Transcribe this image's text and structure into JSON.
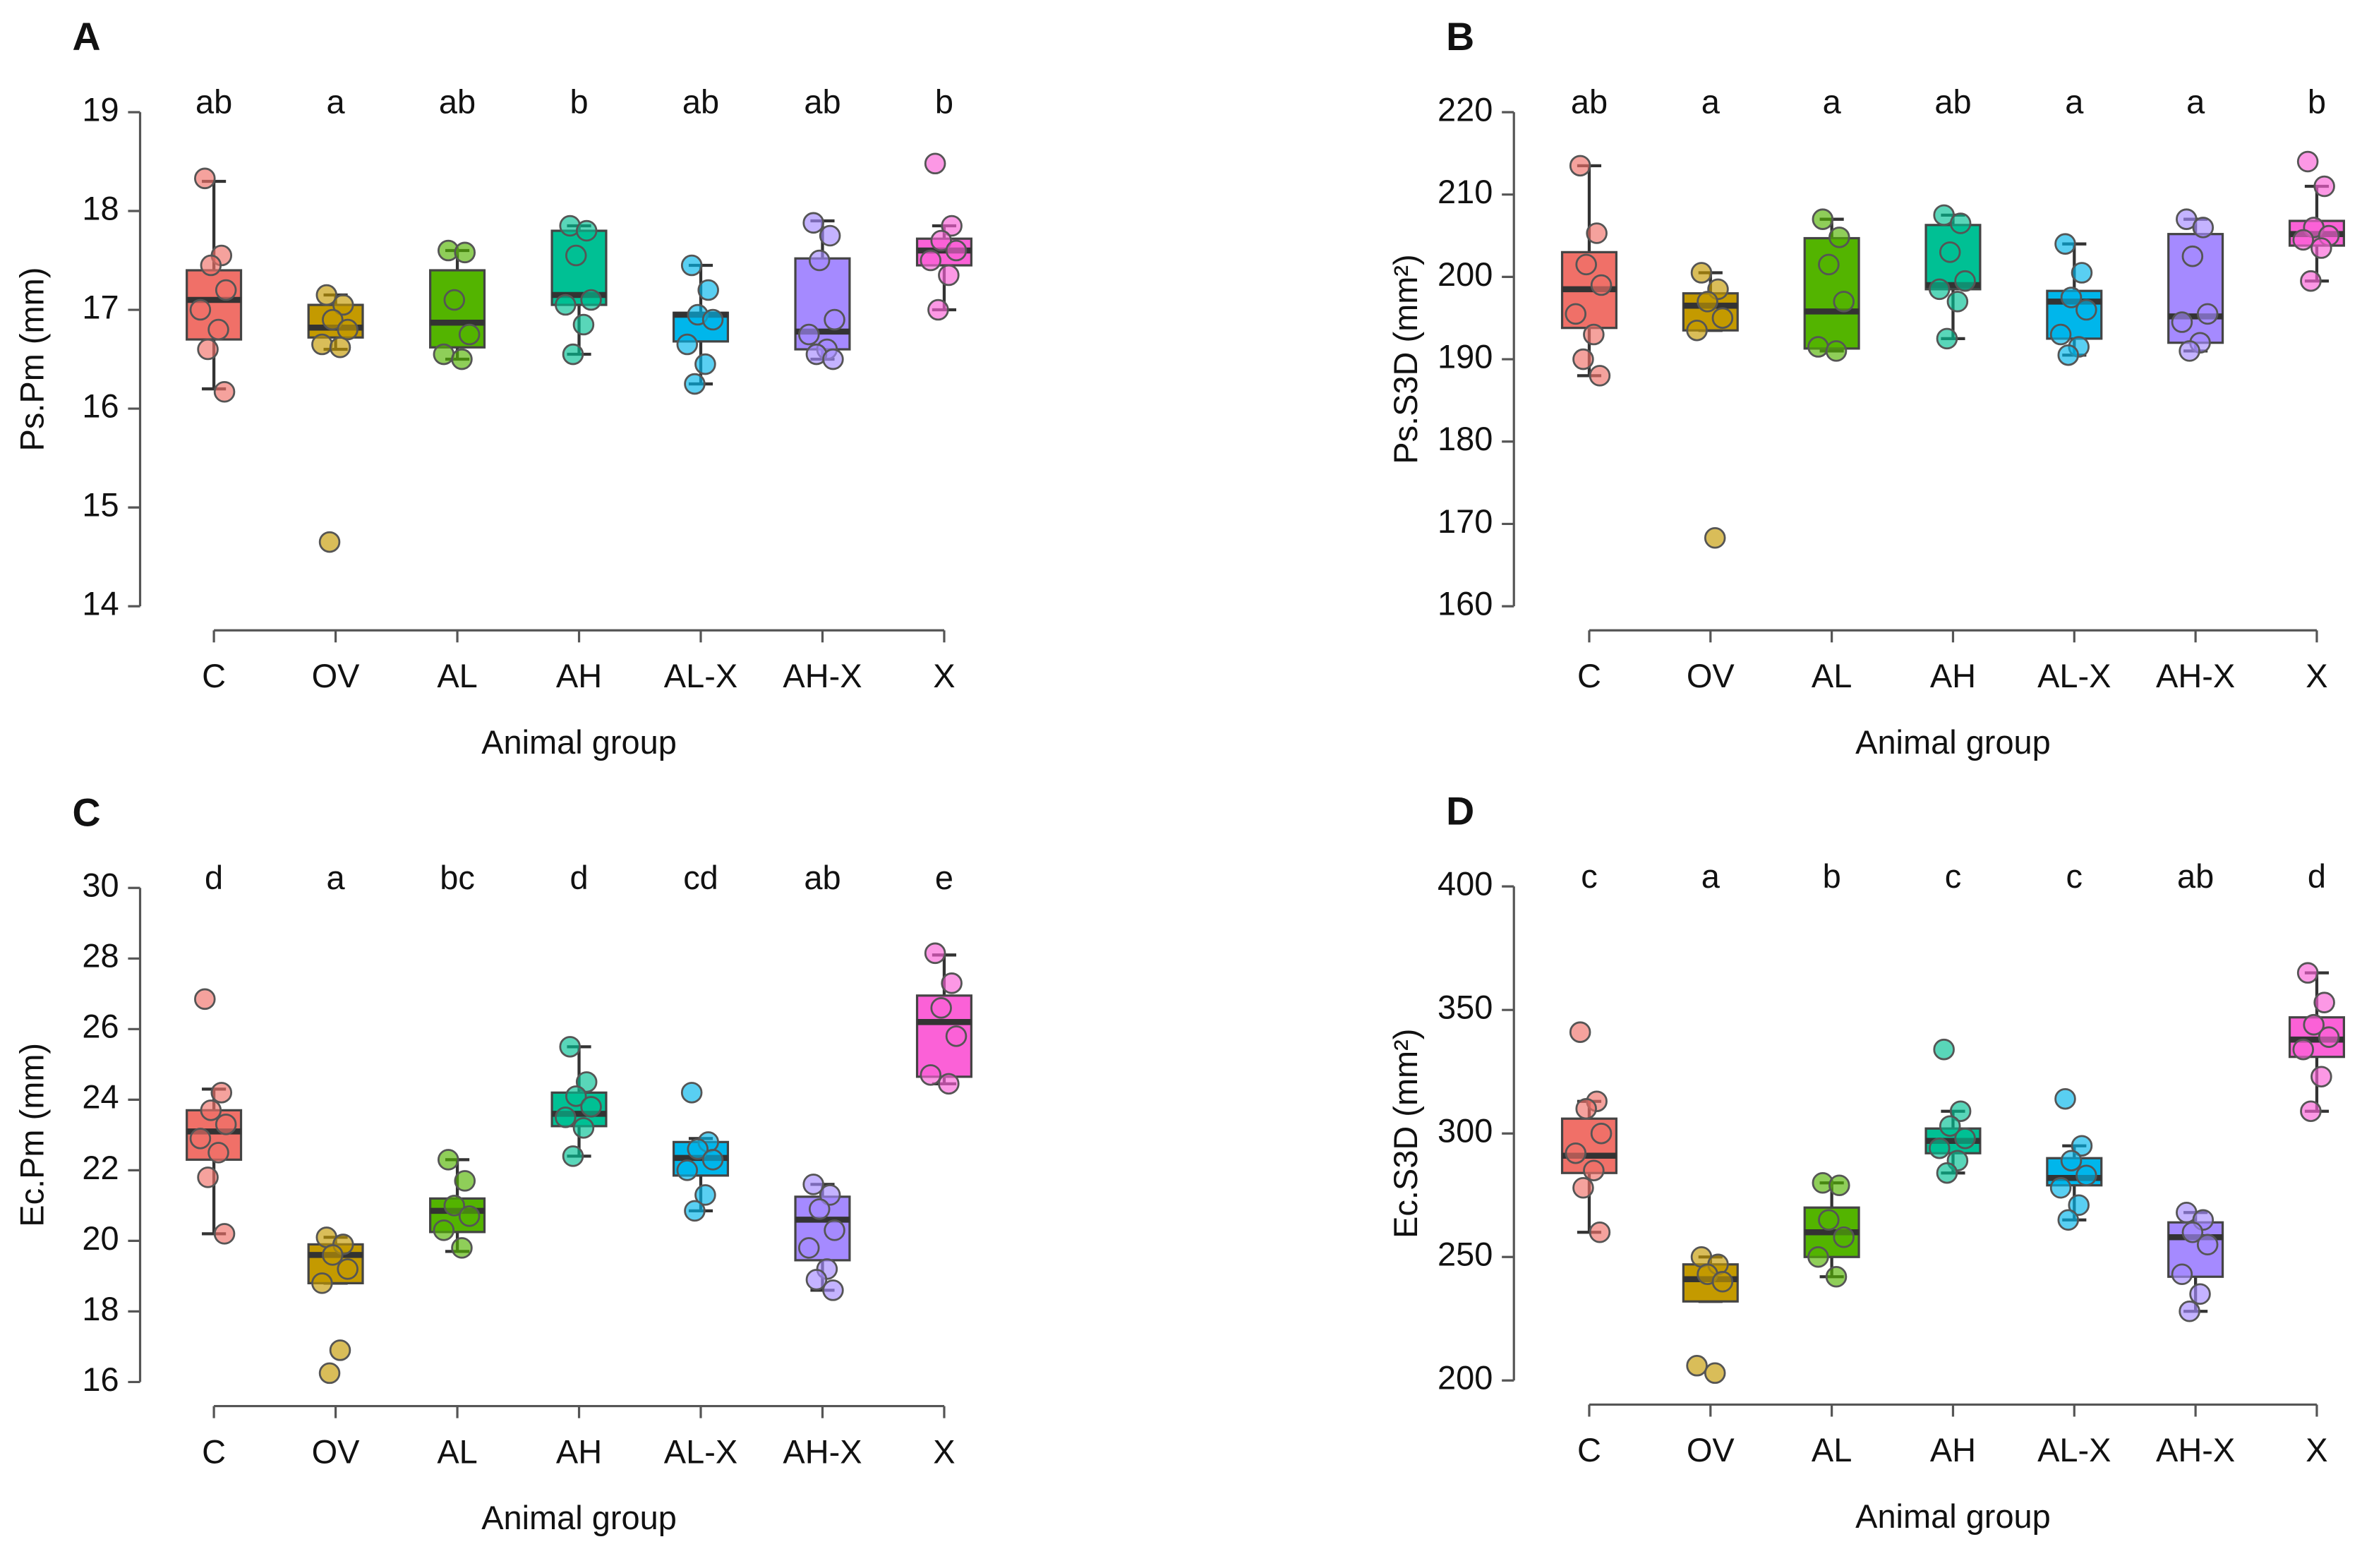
{
  "chart_data": [
    {
      "type": "box",
      "panel": "A",
      "ylabel": "Ps.Pm (mm)",
      "xlabel": "Animal group",
      "categories": [
        "C",
        "OV",
        "AL",
        "AH",
        "AL-X",
        "AH-X",
        "X"
      ],
      "letters": [
        "ab",
        "a",
        "ab",
        "b",
        "ab",
        "ab",
        "b"
      ],
      "colors": [
        "#f07068",
        "#c49a00",
        "#53b400",
        "#00c094",
        "#00b6eb",
        "#a58aff",
        "#fb61d7"
      ],
      "ylim": [
        14,
        19
      ],
      "yticks": [
        14,
        15,
        16,
        17,
        18,
        19
      ],
      "boxes": [
        {
          "whisker_low": 16.2,
          "q1": 16.7,
          "median": 17.1,
          "q3": 17.4,
          "whisker_high": 18.3,
          "points": [
            18.33,
            17.55,
            17.45,
            17.2,
            17.0,
            16.8,
            16.6,
            16.17
          ]
        },
        {
          "whisker_low": 16.6,
          "q1": 16.72,
          "median": 16.82,
          "q3": 17.05,
          "whisker_high": 17.15,
          "points": [
            17.15,
            17.05,
            16.9,
            16.8,
            16.65,
            16.62,
            14.65
          ]
        },
        {
          "whisker_low": 16.5,
          "q1": 16.62,
          "median": 16.87,
          "q3": 17.4,
          "whisker_high": 17.6,
          "points": [
            17.6,
            17.58,
            17.1,
            16.75,
            16.55,
            16.5
          ]
        },
        {
          "whisker_low": 16.55,
          "q1": 17.05,
          "median": 17.15,
          "q3": 17.8,
          "whisker_high": 17.85,
          "points": [
            17.85,
            17.8,
            17.55,
            17.1,
            17.05,
            16.85,
            16.55
          ]
        },
        {
          "whisker_low": 16.25,
          "q1": 16.68,
          "median": 16.95,
          "q3": 16.97,
          "whisker_high": 17.45,
          "points": [
            17.45,
            17.2,
            16.95,
            16.9,
            16.65,
            16.45,
            16.25
          ]
        },
        {
          "whisker_low": 16.5,
          "q1": 16.6,
          "median": 16.78,
          "q3": 17.52,
          "whisker_high": 17.9,
          "points": [
            17.88,
            17.75,
            17.5,
            16.9,
            16.75,
            16.6,
            16.55,
            16.5
          ]
        },
        {
          "whisker_low": 17.0,
          "q1": 17.45,
          "median": 17.6,
          "q3": 17.72,
          "whisker_high": 17.85,
          "points": [
            18.48,
            17.85,
            17.7,
            17.6,
            17.5,
            17.35,
            17.0
          ]
        }
      ]
    },
    {
      "type": "box",
      "panel": "B",
      "ylabel": "Ps.S3D (mm²)",
      "xlabel": "Animal group",
      "categories": [
        "C",
        "OV",
        "AL",
        "AH",
        "AL-X",
        "AH-X",
        "X"
      ],
      "letters": [
        "ab",
        "a",
        "a",
        "ab",
        "a",
        "a",
        "b"
      ],
      "colors": [
        "#f07068",
        "#c49a00",
        "#53b400",
        "#00c094",
        "#00b6eb",
        "#a58aff",
        "#fb61d7"
      ],
      "ylim": [
        160,
        220
      ],
      "yticks": [
        160,
        170,
        180,
        190,
        200,
        210,
        220
      ],
      "boxes": [
        {
          "whisker_low": 188,
          "q1": 193.8,
          "median": 198.5,
          "q3": 203,
          "whisker_high": 213.5,
          "points": [
            213.5,
            205.3,
            201.5,
            199,
            195.5,
            193,
            190,
            188
          ]
        },
        {
          "whisker_low": 193.5,
          "q1": 193.5,
          "median": 196.5,
          "q3": 198,
          "whisker_high": 200.5,
          "points": [
            200.5,
            198.5,
            197,
            195,
            193.5,
            168.3
          ]
        },
        {
          "whisker_low": 191,
          "q1": 191.3,
          "median": 195.8,
          "q3": 204.7,
          "whisker_high": 207,
          "points": [
            207,
            204.8,
            201.5,
            197,
            191.5,
            191
          ]
        },
        {
          "whisker_low": 192.5,
          "q1": 198.5,
          "median": 199,
          "q3": 206.3,
          "whisker_high": 207.5,
          "points": [
            207.5,
            206.5,
            203,
            199.5,
            198.5,
            197,
            192.5
          ]
        },
        {
          "whisker_low": 190.5,
          "q1": 192.5,
          "median": 197,
          "q3": 198.3,
          "whisker_high": 204,
          "points": [
            204,
            200.5,
            197.5,
            196,
            193,
            191.5,
            190.5
          ]
        },
        {
          "whisker_low": 191,
          "q1": 192,
          "median": 195.2,
          "q3": 205.2,
          "whisker_high": 207,
          "points": [
            207,
            206,
            202.5,
            195.5,
            194.5,
            192,
            191
          ]
        },
        {
          "whisker_low": 199.5,
          "q1": 203.8,
          "median": 205.2,
          "q3": 206.8,
          "whisker_high": 211,
          "points": [
            214,
            211,
            206,
            205,
            204.5,
            203.5,
            199.5
          ]
        }
      ]
    },
    {
      "type": "box",
      "panel": "C",
      "ylabel": "Ec.Pm (mm)",
      "xlabel": "Animal group",
      "categories": [
        "C",
        "OV",
        "AL",
        "AH",
        "AL-X",
        "AH-X",
        "X"
      ],
      "letters": [
        "d",
        "a",
        "bc",
        "d",
        "cd",
        "ab",
        "e"
      ],
      "colors": [
        "#f07068",
        "#c49a00",
        "#53b400",
        "#00c094",
        "#00b6eb",
        "#a58aff",
        "#fb61d7"
      ],
      "ylim": [
        16,
        30
      ],
      "yticks": [
        16,
        18,
        20,
        22,
        24,
        26,
        28,
        30
      ],
      "boxes": [
        {
          "whisker_low": 20.2,
          "q1": 22.3,
          "median": 23.1,
          "q3": 23.7,
          "whisker_high": 24.3,
          "points": [
            26.85,
            24.2,
            23.7,
            23.3,
            22.9,
            22.5,
            21.8,
            20.2
          ]
        },
        {
          "whisker_low": 18.8,
          "q1": 18.8,
          "median": 19.6,
          "q3": 19.9,
          "whisker_high": 20.1,
          "points": [
            20.1,
            19.9,
            19.6,
            19.2,
            18.8,
            16.9,
            16.25
          ]
        },
        {
          "whisker_low": 19.7,
          "q1": 20.25,
          "median": 20.85,
          "q3": 21.2,
          "whisker_high": 22.3,
          "points": [
            22.3,
            21.7,
            21.0,
            20.7,
            20.3,
            19.8
          ]
        },
        {
          "whisker_low": 22.4,
          "q1": 23.25,
          "median": 23.6,
          "q3": 24.2,
          "whisker_high": 25.5,
          "points": [
            25.5,
            24.5,
            24.1,
            23.8,
            23.5,
            23.2,
            22.4
          ]
        },
        {
          "whisker_low": 20.85,
          "q1": 21.85,
          "median": 22.35,
          "q3": 22.8,
          "whisker_high": 22.9,
          "points": [
            24.2,
            22.8,
            22.6,
            22.3,
            22.0,
            21.3,
            20.85
          ]
        },
        {
          "whisker_low": 18.6,
          "q1": 19.45,
          "median": 20.6,
          "q3": 21.25,
          "whisker_high": 21.6,
          "points": [
            21.6,
            21.3,
            20.9,
            20.3,
            19.8,
            19.2,
            18.9,
            18.6
          ]
        },
        {
          "whisker_low": 24.45,
          "q1": 24.65,
          "median": 26.2,
          "q3": 26.95,
          "whisker_high": 28.1,
          "points": [
            28.15,
            27.3,
            26.6,
            25.8,
            24.7,
            24.45
          ]
        }
      ]
    },
    {
      "type": "box",
      "panel": "D",
      "ylabel": "Ec.S3D (mm²)",
      "xlabel": "Animal group",
      "categories": [
        "C",
        "OV",
        "AL",
        "AH",
        "AL-X",
        "AH-X",
        "X"
      ],
      "letters": [
        "c",
        "a",
        "b",
        "c",
        "c",
        "ab",
        "d"
      ],
      "colors": [
        "#f07068",
        "#c49a00",
        "#53b400",
        "#00c094",
        "#00b6eb",
        "#a58aff",
        "#fb61d7"
      ],
      "ylim": [
        200,
        400
      ],
      "yticks": [
        200,
        250,
        300,
        350,
        400
      ],
      "boxes": [
        {
          "whisker_low": 260,
          "q1": 284,
          "median": 291,
          "q3": 306,
          "whisker_high": 313,
          "points": [
            341,
            313,
            310,
            300,
            292,
            285,
            278,
            260
          ]
        },
        {
          "whisker_low": 232,
          "q1": 232,
          "median": 241,
          "q3": 247,
          "whisker_high": 250,
          "points": [
            250,
            247,
            243,
            240,
            206,
            203
          ]
        },
        {
          "whisker_low": 242,
          "q1": 250,
          "median": 260,
          "q3": 270,
          "whisker_high": 280,
          "points": [
            280,
            279,
            265,
            258,
            250,
            242
          ]
        },
        {
          "whisker_low": 284,
          "q1": 292,
          "median": 297,
          "q3": 302,
          "whisker_high": 309,
          "points": [
            334,
            309,
            303,
            298,
            294,
            289,
            284
          ]
        },
        {
          "whisker_low": 265,
          "q1": 279,
          "median": 282,
          "q3": 290,
          "whisker_high": 295,
          "points": [
            314,
            295,
            289,
            283,
            278,
            271,
            265
          ]
        },
        {
          "whisker_low": 228,
          "q1": 242,
          "median": 258,
          "q3": 264,
          "whisker_high": 268,
          "points": [
            268,
            265,
            260,
            255,
            243,
            235,
            228
          ]
        },
        {
          "whisker_low": 309,
          "q1": 331,
          "median": 338,
          "q3": 347,
          "whisker_high": 365,
          "points": [
            365,
            353,
            344,
            339,
            334,
            323,
            309
          ]
        }
      ]
    }
  ]
}
